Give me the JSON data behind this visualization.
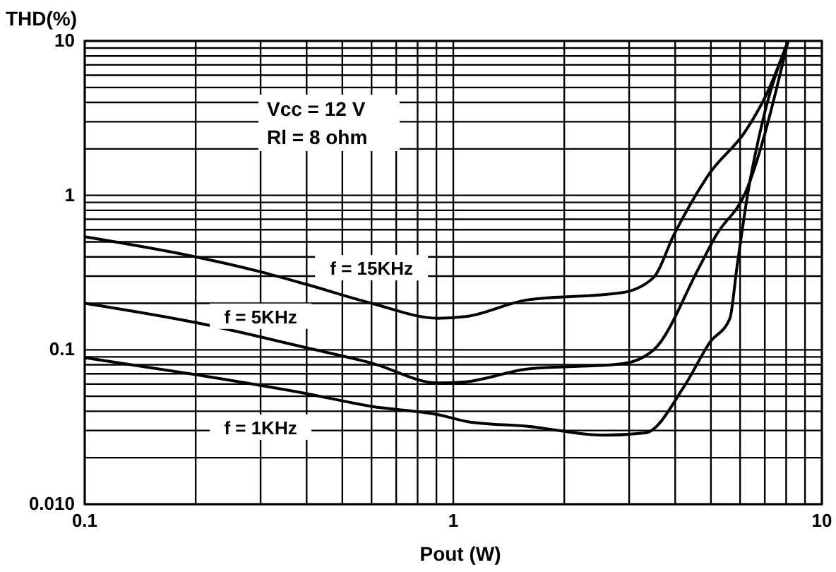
{
  "chart_data": {
    "type": "line",
    "xlabel": "Pout (W)",
    "ylabel": "THD(%)",
    "log": "xy",
    "grid": true,
    "marker": "none",
    "line_style": "solid",
    "xlim": [
      0.1,
      10
    ],
    "ylim": [
      0.01,
      10
    ],
    "xticks": [
      0.1,
      {
        "value": 0.2,
        "label": null
      },
      {
        "value": 0.3,
        "label": null
      },
      {
        "value": 0.4,
        "label": null
      },
      {
        "value": 0.5,
        "label": null
      },
      {
        "value": 0.6,
        "label": null
      },
      {
        "value": 0.7,
        "label": null
      },
      {
        "value": 0.8,
        "label": null
      },
      {
        "value": 0.9,
        "label": null
      },
      1,
      {
        "value": 2,
        "label": null
      },
      {
        "value": 3,
        "label": null
      },
      {
        "value": 4,
        "label": null
      },
      {
        "value": 5,
        "label": null
      },
      {
        "value": 6,
        "label": null
      },
      {
        "value": 7,
        "label": null
      },
      {
        "value": 8,
        "label": null
      },
      {
        "value": 9,
        "label": null
      },
      10
    ],
    "yticks": [
      {
        "value": 0.01,
        "label": "0.010"
      },
      {
        "value": 0.02,
        "label": null
      },
      {
        "value": 0.03,
        "label": null
      },
      {
        "value": 0.04,
        "label": null
      },
      {
        "value": 0.05,
        "label": null
      },
      {
        "value": 0.06,
        "label": null
      },
      {
        "value": 0.07,
        "label": null
      },
      {
        "value": 0.08,
        "label": null
      },
      {
        "value": 0.09,
        "label": null
      },
      0.1,
      {
        "value": 0.2,
        "label": null
      },
      {
        "value": 0.3,
        "label": null
      },
      {
        "value": 0.4,
        "label": null
      },
      {
        "value": 0.5,
        "label": null
      },
      {
        "value": 0.6,
        "label": null
      },
      {
        "value": 0.7,
        "label": null
      },
      {
        "value": 0.8,
        "label": null
      },
      {
        "value": 0.9,
        "label": null
      },
      1,
      {
        "value": 2,
        "label": null
      },
      {
        "value": 3,
        "label": null
      },
      {
        "value": 4,
        "label": null
      },
      {
        "value": 5,
        "label": null
      },
      {
        "value": 6,
        "label": null
      },
      {
        "value": 7,
        "label": null
      },
      {
        "value": 8,
        "label": null
      },
      {
        "value": 9,
        "label": null
      },
      10
    ],
    "annotations": [
      "Vcc = 12 V",
      "Rl = 8 ohm"
    ],
    "series": [
      {
        "name": "f = 15KHz",
        "color": "#000000",
        "x": [
          0.1,
          0.2,
          0.3,
          0.4,
          0.6,
          0.91,
          1.08,
          1.58,
          2.86,
          3.5,
          3.96,
          4.97,
          6.2,
          7.07,
          8.1
        ],
        "values": [
          0.54,
          0.4,
          0.32,
          0.265,
          0.2,
          0.16,
          0.164,
          0.21,
          0.234,
          0.295,
          0.55,
          1.4,
          2.6,
          4.5,
          10
        ]
      },
      {
        "name": "f = 5KHz",
        "color": "#000000",
        "x": [
          0.1,
          0.2,
          0.4,
          0.6,
          0.91,
          1.08,
          1.58,
          2.86,
          3.5,
          4.64,
          5.16,
          6.2,
          8.1
        ],
        "values": [
          0.2,
          0.15,
          0.103,
          0.082,
          0.061,
          0.062,
          0.075,
          0.081,
          0.1,
          0.34,
          0.55,
          1.04,
          10
        ]
      },
      {
        "name": "f = 1KHz",
        "color": "#000000",
        "x": [
          0.1,
          0.2,
          0.4,
          0.6,
          0.91,
          1.11,
          1.58,
          2.55,
          3.32,
          4.25,
          4.97,
          5.63,
          5.88,
          6.3,
          6.9,
          8.1
        ],
        "values": [
          0.089,
          0.069,
          0.052,
          0.043,
          0.038,
          0.034,
          0.032,
          0.028,
          0.029,
          0.059,
          0.112,
          0.16,
          0.34,
          1.04,
          3.0,
          10
        ]
      }
    ]
  }
}
